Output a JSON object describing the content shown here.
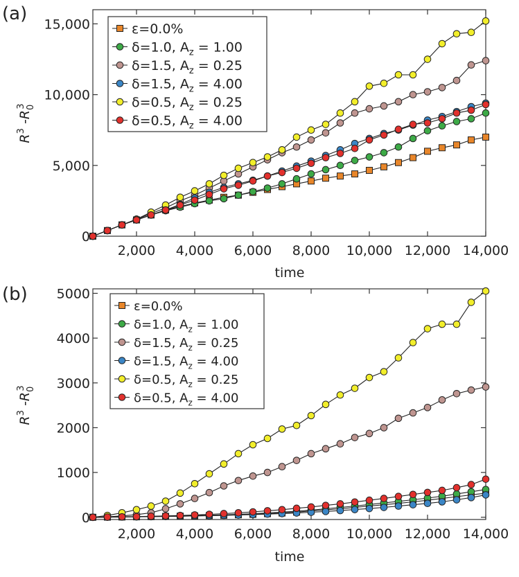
{
  "chart_data": [
    {
      "type": "line",
      "panel_label": "(a)",
      "xlabel": "time",
      "ylabel_main": "R",
      "ylabel_sup1": "3",
      "ylabel_minus": " -R",
      "ylabel_sub": "0",
      "ylabel_sup2": "3",
      "xlim": [
        500,
        14000
      ],
      "ylim": [
        0,
        16000
      ],
      "xticks": [
        2000,
        4000,
        6000,
        8000,
        10000,
        12000,
        14000
      ],
      "xtick_labels": [
        "2,000",
        "4,000",
        "6,000",
        "8,000",
        "10,000",
        "12,000",
        "14,000"
      ],
      "yticks": [
        0,
        5000,
        10000,
        15000
      ],
      "ytick_labels": [
        "0",
        "5,000",
        "10,000",
        "15,000"
      ],
      "legend_position": "top-left",
      "series": [
        {
          "name": "ε=0.0%",
          "legend_main": "ε=0.0%",
          "legend_sub": "",
          "legend_tail": "",
          "marker": "square",
          "color": "#e8862a",
          "x": [
            500,
            1000,
            1500,
            2000,
            2500,
            3000,
            3500,
            4000,
            4500,
            5000,
            5500,
            6000,
            6500,
            7000,
            7500,
            8000,
            8500,
            9000,
            9500,
            10000,
            10500,
            11000,
            11500,
            12000,
            12500,
            13000,
            13500,
            14000
          ],
          "y": [
            0,
            400,
            800,
            1150,
            1500,
            1850,
            2100,
            2350,
            2550,
            2750,
            2900,
            3100,
            3300,
            3500,
            3700,
            3900,
            4100,
            4250,
            4400,
            4650,
            4900,
            5200,
            5550,
            6000,
            6250,
            6450,
            6800,
            7000
          ]
        },
        {
          "name": "δ=1.0, A_z = 1.00",
          "legend_main": "δ=1.0, A",
          "legend_sub": "z",
          "legend_tail": " = 1.00",
          "marker": "circle",
          "color": "#3daa47",
          "x": [
            500,
            1000,
            1500,
            2000,
            2500,
            3000,
            3500,
            4000,
            4500,
            5000,
            5500,
            6000,
            6500,
            7000,
            7500,
            8000,
            8500,
            9000,
            9500,
            10000,
            10500,
            11000,
            11500,
            12000,
            12500,
            13000,
            13500,
            14000
          ],
          "y": [
            0,
            400,
            800,
            1150,
            1500,
            1800,
            2050,
            2300,
            2500,
            2650,
            2900,
            3150,
            3400,
            3700,
            4050,
            4400,
            4700,
            5000,
            5350,
            5600,
            5900,
            6300,
            6900,
            7450,
            7800,
            8100,
            8300,
            8700
          ]
        },
        {
          "name": "δ=1.5, A_z = 0.25",
          "legend_main": "δ=1.5, A",
          "legend_sub": "z",
          "legend_tail": " = 0.25",
          "marker": "circle",
          "color": "#bf9590",
          "x": [
            500,
            1000,
            1500,
            2000,
            2500,
            3000,
            3500,
            4000,
            4500,
            5000,
            5500,
            6000,
            6500,
            7000,
            7500,
            8000,
            8500,
            9000,
            9500,
            10000,
            10500,
            11000,
            11500,
            12000,
            12500,
            13000,
            13500,
            14000
          ],
          "y": [
            0,
            400,
            800,
            1200,
            1600,
            2000,
            2500,
            2900,
            3400,
            3900,
            4400,
            4900,
            5400,
            5900,
            6300,
            6800,
            7300,
            8000,
            8700,
            9000,
            9200,
            9500,
            10000,
            10200,
            10500,
            11000,
            12100,
            12400
          ]
        },
        {
          "name": "δ=1.5, A_z = 4.00",
          "legend_main": "δ=1.5, A",
          "legend_sub": "z",
          "legend_tail": " = 4.00",
          "marker": "circle",
          "color": "#3b86c6",
          "x": [
            500,
            1000,
            1500,
            2000,
            2500,
            3000,
            3500,
            4000,
            4500,
            5000,
            5500,
            6000,
            6500,
            7000,
            7500,
            8000,
            8500,
            9000,
            9500,
            10000,
            10500,
            11000,
            11500,
            12000,
            12500,
            13000,
            13500,
            14000
          ],
          "y": [
            0,
            400,
            800,
            1150,
            1500,
            1850,
            2250,
            2700,
            3100,
            3450,
            3700,
            3950,
            4250,
            4600,
            4950,
            5300,
            5700,
            6100,
            6550,
            6900,
            7250,
            7500,
            7850,
            8200,
            8450,
            8800,
            9150,
            9400
          ]
        },
        {
          "name": "δ=0.5, A_z = 0.25",
          "legend_main": "δ=0.5, A",
          "legend_sub": "z",
          "legend_tail": " = 0.25",
          "marker": "circle",
          "color": "#f2ee2b",
          "x": [
            500,
            1000,
            1500,
            2000,
            2500,
            3000,
            3500,
            4000,
            4500,
            5000,
            5500,
            6000,
            6500,
            7000,
            7500,
            8000,
            8500,
            9000,
            9500,
            10000,
            10500,
            11000,
            11500,
            12000,
            12500,
            13000,
            13500,
            14000
          ],
          "y": [
            0,
            400,
            800,
            1200,
            1700,
            2200,
            2750,
            3200,
            3700,
            4300,
            4800,
            5200,
            5600,
            6100,
            7000,
            7500,
            7900,
            8700,
            9500,
            10600,
            10800,
            11400,
            11400,
            12500,
            13600,
            14300,
            14400,
            15200
          ]
        },
        {
          "name": "δ=0.5, A_z = 4.00",
          "legend_main": "δ=0.5, A",
          "legend_sub": "z",
          "legend_tail": " = 4.00",
          "marker": "circle",
          "color": "#e2312d",
          "x": [
            500,
            1000,
            1500,
            2000,
            2500,
            3000,
            3500,
            4000,
            4500,
            5000,
            5500,
            6000,
            6500,
            7000,
            7500,
            8000,
            8500,
            9000,
            9500,
            10000,
            10500,
            11000,
            11500,
            12000,
            12500,
            13000,
            13500,
            14000
          ],
          "y": [
            0,
            400,
            800,
            1150,
            1500,
            1850,
            2200,
            2550,
            2950,
            3350,
            3600,
            3900,
            4250,
            4500,
            4800,
            5150,
            5550,
            5850,
            6200,
            6800,
            7150,
            7550,
            7900,
            8000,
            8300,
            8700,
            8900,
            9300
          ]
        }
      ]
    },
    {
      "type": "line",
      "panel_label": "(b)",
      "xlabel": "time",
      "ylabel_main": "R",
      "ylabel_sup1": "3",
      "ylabel_minus": " -R",
      "ylabel_sub": "0",
      "ylabel_sup2": "3",
      "xlim": [
        500,
        14000
      ],
      "ylim": [
        -50,
        5100
      ],
      "xticks": [
        2000,
        4000,
        6000,
        8000,
        10000,
        12000,
        14000
      ],
      "xtick_labels": [
        "2,000",
        "4,000",
        "6,000",
        "8,000",
        "10,000",
        "12,000",
        "14,000"
      ],
      "yticks": [
        0,
        1000,
        2000,
        3000,
        4000,
        5000
      ],
      "ytick_labels": [
        "0",
        "1000",
        "2000",
        "3000",
        "4000",
        "5000"
      ],
      "legend_position": "top-left",
      "series": [
        {
          "name": "ε=0.0%",
          "legend_main": "ε=0.0%",
          "legend_sub": "",
          "legend_tail": "",
          "marker": "square",
          "color": "#e8862a",
          "x": [
            500,
            1000,
            1500,
            2000,
            2500,
            3000,
            3500,
            4000,
            4500,
            5000,
            5500,
            6000,
            6500,
            7000,
            7500,
            8000,
            8500,
            9000,
            9500,
            10000,
            10500,
            11000,
            11500,
            12000,
            12500,
            13000,
            13500,
            14000
          ],
          "y": [
            0,
            3,
            6,
            10,
            15,
            20,
            25,
            30,
            38,
            45,
            55,
            65,
            80,
            95,
            115,
            140,
            165,
            190,
            220,
            250,
            280,
            310,
            345,
            380,
            420,
            460,
            500,
            540
          ]
        },
        {
          "name": "δ=1.0, A_z = 1.00",
          "legend_main": "δ=1.0, A",
          "legend_sub": "z",
          "legend_tail": " = 1.00",
          "marker": "circle",
          "color": "#3daa47",
          "x": [
            500,
            1000,
            1500,
            2000,
            2500,
            3000,
            3500,
            4000,
            4500,
            5000,
            5500,
            6000,
            6500,
            7000,
            7500,
            8000,
            8500,
            9000,
            9500,
            10000,
            10500,
            11000,
            11500,
            12000,
            12500,
            13000,
            13500,
            14000
          ],
          "y": [
            0,
            4,
            8,
            12,
            18,
            24,
            30,
            38,
            46,
            55,
            65,
            80,
            95,
            115,
            135,
            160,
            190,
            220,
            250,
            285,
            320,
            355,
            390,
            430,
            470,
            520,
            570,
            620
          ]
        },
        {
          "name": "δ=1.5, A_z = 0.25",
          "legend_main": "δ=1.5, A",
          "legend_sub": "z",
          "legend_tail": " = 0.25",
          "marker": "circle",
          "color": "#bf9590",
          "x": [
            500,
            1000,
            1500,
            2000,
            2500,
            3000,
            3500,
            4000,
            4500,
            5000,
            5500,
            6000,
            6500,
            7000,
            7500,
            8000,
            8500,
            9000,
            9500,
            10000,
            10500,
            11000,
            11500,
            12000,
            12500,
            13000,
            13500,
            14000
          ],
          "y": [
            0,
            10,
            30,
            60,
            100,
            190,
            300,
            420,
            550,
            700,
            820,
            920,
            1000,
            1130,
            1270,
            1420,
            1530,
            1640,
            1780,
            1870,
            2000,
            2210,
            2330,
            2450,
            2620,
            2760,
            2840,
            2910
          ]
        },
        {
          "name": "δ=1.5, A_z = 4.00",
          "legend_main": "δ=1.5, A",
          "legend_sub": "z",
          "legend_tail": " = 4.00",
          "marker": "circle",
          "color": "#3b86c6",
          "x": [
            500,
            1000,
            1500,
            2000,
            2500,
            3000,
            3500,
            4000,
            4500,
            5000,
            5500,
            6000,
            6500,
            7000,
            7500,
            8000,
            8500,
            9000,
            9500,
            10000,
            10500,
            11000,
            11500,
            12000,
            12500,
            13000,
            13500,
            14000
          ],
          "y": [
            0,
            3,
            6,
            10,
            14,
            18,
            24,
            30,
            36,
            43,
            50,
            60,
            70,
            82,
            96,
            112,
            130,
            150,
            172,
            195,
            220,
            250,
            280,
            310,
            345,
            390,
            440,
            500
          ]
        },
        {
          "name": "δ=0.5, A_z = 0.25",
          "legend_main": "δ=0.5, A",
          "legend_sub": "z",
          "legend_tail": " = 0.25",
          "marker": "circle",
          "color": "#f2ee2b",
          "x": [
            500,
            1000,
            1500,
            2000,
            2500,
            3000,
            3500,
            4000,
            4500,
            5000,
            5500,
            6000,
            6500,
            7000,
            7500,
            8000,
            8500,
            9000,
            9500,
            10000,
            10500,
            11000,
            11500,
            12000,
            12500,
            13000,
            13500,
            14000
          ],
          "y": [
            0,
            40,
            100,
            170,
            250,
            360,
            540,
            750,
            970,
            1190,
            1420,
            1620,
            1760,
            1970,
            2050,
            2270,
            2520,
            2730,
            2880,
            3120,
            3250,
            3560,
            3900,
            4210,
            4310,
            4310,
            4800,
            5050
          ]
        },
        {
          "name": "δ=0.5, A_z = 4.00",
          "legend_main": "δ=0.5, A",
          "legend_sub": "z",
          "legend_tail": " = 4.00",
          "marker": "circle",
          "color": "#e2312d",
          "x": [
            500,
            1000,
            1500,
            2000,
            2500,
            3000,
            3500,
            4000,
            4500,
            5000,
            5500,
            6000,
            6500,
            7000,
            7500,
            8000,
            8500,
            9000,
            9500,
            10000,
            10500,
            11000,
            11500,
            12000,
            12500,
            13000,
            13500,
            14000
          ],
          "y": [
            0,
            5,
            10,
            15,
            22,
            30,
            40,
            52,
            66,
            82,
            100,
            120,
            145,
            170,
            200,
            230,
            265,
            300,
            340,
            380,
            420,
            465,
            510,
            555,
            600,
            660,
            730,
            850
          ]
        }
      ]
    }
  ]
}
